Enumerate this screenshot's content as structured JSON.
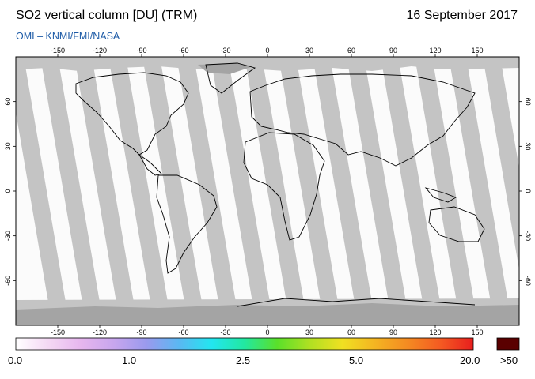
{
  "header": {
    "title": "SO2 vertical column [DU] (TRM)",
    "date": "16 September 2017",
    "credit": "OMI – KNMI/FMI/NASA"
  },
  "map": {
    "lon_ticks": [
      {
        "value": -150,
        "label": "-150"
      },
      {
        "value": -120,
        "label": "-120"
      },
      {
        "value": -90,
        "label": "-90"
      },
      {
        "value": -60,
        "label": "-60"
      },
      {
        "value": -30,
        "label": "-30"
      },
      {
        "value": 0,
        "label": "0"
      },
      {
        "value": 30,
        "label": "30"
      },
      {
        "value": 60,
        "label": "60"
      },
      {
        "value": 90,
        "label": "90"
      },
      {
        "value": 120,
        "label": "120"
      },
      {
        "value": 150,
        "label": "150"
      }
    ],
    "lat_ticks": [
      {
        "value": 60,
        "label": "60"
      },
      {
        "value": 30,
        "label": "30"
      },
      {
        "value": 0,
        "label": "0"
      },
      {
        "value": -30,
        "label": "-30"
      },
      {
        "value": -60,
        "label": "-60"
      }
    ],
    "colors": {
      "no_data": "#c4c4c4",
      "no_data_dark": "#a4a4a4",
      "background": "#fbfbfb",
      "coast": "#000000"
    }
  },
  "colorbar": {
    "labels": [
      {
        "value": "0.0"
      },
      {
        "value": "1.0"
      },
      {
        "value": "2.5"
      },
      {
        "value": "5.0"
      },
      {
        "value": "20.0"
      }
    ],
    "over_label": ">50",
    "over_color": "#5a0000",
    "colors": [
      "#ffffff",
      "#f4d8f4",
      "#e6b6ee",
      "#c8a6ee",
      "#9a9aee",
      "#5ab8f2",
      "#22e6f0",
      "#22e8a0",
      "#5ae02a",
      "#b0e022",
      "#f0e022",
      "#f4b422",
      "#f48a22",
      "#f45a22",
      "#e81e1e"
    ]
  }
}
